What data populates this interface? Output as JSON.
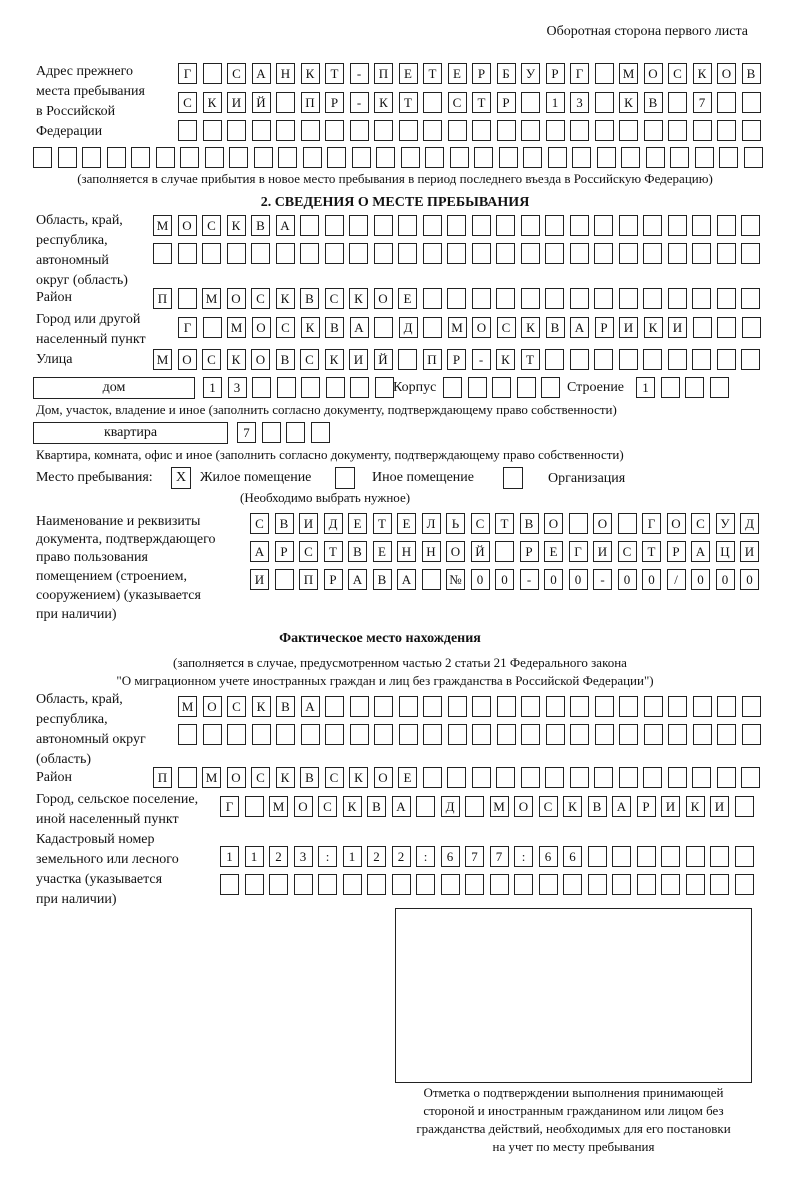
{
  "header": {
    "page_side": "Оборотная сторона первого листа"
  },
  "previous_address": {
    "label": [
      "Адрес прежнего",
      "места пребывания",
      "в Российской",
      "Федерации"
    ],
    "rows": [
      "Г САНКТ-ПЕТЕРБУРГ МОСКОВ",
      "СКИЙ ПР-КТ СТР 13 КВ 7",
      "",
      ""
    ],
    "note": "(заполняется в случае прибытия в новое место пребывания в период последнего въезда в Российскую Федерацию)"
  },
  "section2": {
    "title": "2. СВЕДЕНИЯ О МЕСТЕ ПРЕБЫВАНИЯ",
    "region_label": [
      "Область, край,",
      "республика,",
      "автономный",
      "округ (область)"
    ],
    "region_rows": [
      "МОСКВА",
      ""
    ],
    "district_label": "Район",
    "district": "П МОСКВСКОЕ",
    "city_label": [
      "Город или другой",
      "населенный пункт"
    ],
    "city": "Г МОСКВА Д МОСКВАРИКИ",
    "street_label": "Улица",
    "street": "МОСКОВСКИЙ ПР-КТ",
    "house_type": "дом",
    "house_number": "13",
    "building_label": "Корпус",
    "building": "",
    "structure_label": "Строение",
    "structure": "1",
    "house_note": "Дом, участок, владение и иное (заполнить согласно документу, подтверждающему право собственности)",
    "apartment_type": "квартира",
    "apartment_number": "7",
    "apartment_note": "Квартира, комната, офис и иное (заполнить согласно документу, подтверждающему право собственности)",
    "stay_place_label": "Место пребывания:",
    "stay_options": [
      {
        "label": "Жилое помещение",
        "mark": "Х"
      },
      {
        "label": "Иное помещение",
        "mark": ""
      },
      {
        "label": "Организация",
        "mark": ""
      }
    ],
    "stay_hint": "(Необходимо выбрать нужное)",
    "document_label": [
      "Наименование и реквизиты",
      "документа, подтверждающего",
      "право пользования",
      "помещением (строением,",
      "сооружением) (указывается",
      "при наличии)"
    ],
    "document_rows": [
      "СВИДЕТЕЛЬСТВО О ГОСУД",
      "АРСТВЕННОЙ РЕГИСТРАЦИ",
      "И ПРАВА №00-00-00/000"
    ]
  },
  "actual_location": {
    "title": "Фактическое место нахождения",
    "note": [
      "(заполняется в случае, предусмотренном частью 2 статьи 21 Федерального закона",
      "\"О миграционном учете иностранных граждан и лиц без гражданства в Российской Федерации\")"
    ],
    "region_label": [
      "Область, край,",
      "республика,",
      "автономный округ",
      "(область)"
    ],
    "region_rows": [
      "МОСКВА",
      ""
    ],
    "district_label": "Район",
    "district": "П МОСКВСКОЕ",
    "city_label": [
      "Город, сельское поселение,",
      "иной населенный пункт"
    ],
    "city": "Г МОСКВА Д МОСКВАРИКИ",
    "cadastral_label": [
      "Кадастровый номер",
      "земельного или лесного",
      "участка (указывается",
      "при наличии)"
    ],
    "cadastral_rows": [
      "1123:122:677:66",
      ""
    ]
  },
  "confirmation": {
    "caption": [
      "Отметка о подтверждении выполнения принимающей",
      "стороной и иностранным гражданином или лицом без",
      "гражданства действий, необходимых для его постановки",
      "на учет по месту пребывания"
    ]
  }
}
